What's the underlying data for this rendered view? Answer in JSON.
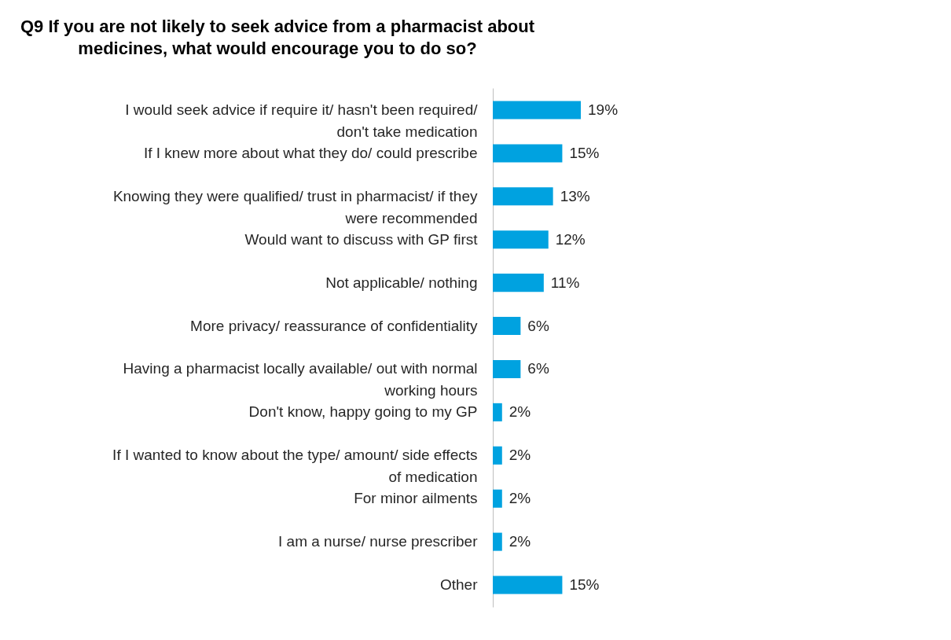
{
  "chart_data": {
    "type": "bar",
    "orientation": "horizontal",
    "title": "Q9 If you are not likely to seek advice from a pharmacist about medicines, what would encourage you to do so?",
    "categories": [
      "I would seek advice if require it/ hasn't been required/ don't take medication",
      "If I knew more about what they do/ could prescribe",
      "Knowing they were qualified/ trust in pharmacist/ if they were recommended",
      "Would want to discuss with GP first",
      "Not applicable/ nothing",
      "More privacy/ reassurance of confidentiality",
      "Having a pharmacist locally available/ out with normal working hours",
      "Don't know, happy going to my GP",
      "If I wanted to know about the type/ amount/ side effects of medication",
      "For minor ailments",
      "I am a nurse/ nurse prescriber",
      "Other"
    ],
    "values": [
      19,
      15,
      13,
      12,
      11,
      6,
      6,
      2,
      2,
      2,
      2,
      15
    ],
    "value_labels": [
      "19%",
      "15%",
      "13%",
      "12%",
      "11%",
      "6%",
      "6%",
      "2%",
      "2%",
      "2%",
      "2%",
      "15%"
    ],
    "color": "#00a2e0"
  }
}
